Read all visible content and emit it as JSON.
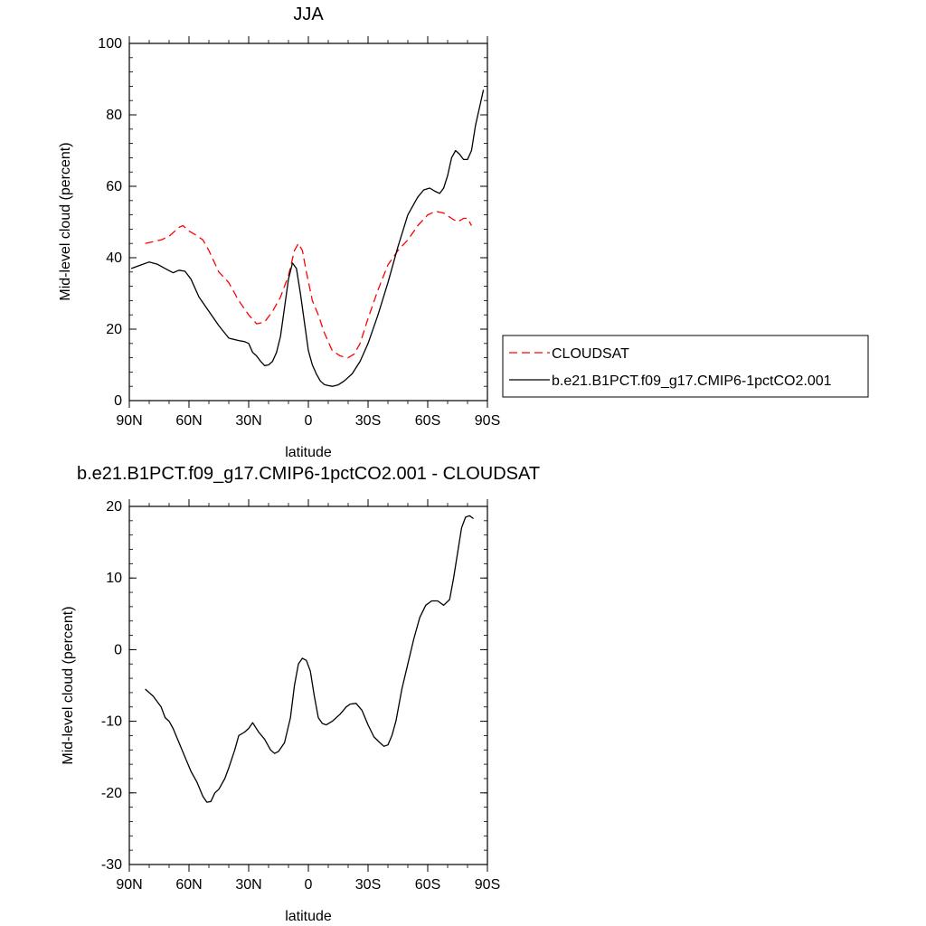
{
  "chart_data": [
    {
      "type": "line",
      "title": "JJA",
      "xlabel": "latitude",
      "ylabel": "Mid-level cloud (percent)",
      "xlim": [
        90,
        -90
      ],
      "ylim": [
        0,
        100
      ],
      "xticks": [
        90,
        60,
        30,
        0,
        -30,
        -60,
        -90
      ],
      "xticklabels": [
        "90N",
        "60N",
        "30N",
        "0",
        "30S",
        "60S",
        "90S"
      ],
      "yticks": [
        0,
        20,
        40,
        60,
        80,
        100
      ],
      "yticklabels": [
        "0",
        "20",
        "40",
        "60",
        "80",
        "100"
      ],
      "legend_position": "right",
      "series": [
        {
          "name": "CLOUDSAT",
          "color": "#ff0000",
          "style": "dashed",
          "x": [
            82,
            74,
            70,
            65,
            63,
            60,
            57,
            53,
            50,
            45,
            40,
            35,
            30,
            26,
            22,
            18,
            14,
            10,
            7,
            5,
            3,
            1,
            -2,
            -5,
            -8,
            -12,
            -16,
            -20,
            -23,
            -26,
            -30,
            -35,
            -40,
            -45,
            -50,
            -55,
            -60,
            -64,
            -68,
            -72,
            -75,
            -78,
            -80,
            -82
          ],
          "y": [
            44,
            45,
            46,
            48.5,
            49,
            47.5,
            46.5,
            45,
            42,
            36,
            33,
            28,
            24,
            21.5,
            22,
            25,
            29,
            35,
            42,
            44,
            42,
            36,
            28,
            24,
            19,
            14,
            12.5,
            12,
            13,
            16,
            23,
            31,
            38,
            42,
            45,
            49,
            52,
            53,
            52.5,
            51,
            50,
            51,
            51,
            49
          ]
        },
        {
          "name": "b.e21.B1PCT.f09_g17.CMIP6-1pctCO2.001",
          "color": "#000000",
          "style": "solid",
          "x": [
            89,
            84,
            80,
            76,
            72,
            68,
            65,
            62,
            59,
            55,
            50,
            45,
            40,
            35,
            32,
            30,
            28,
            26,
            24,
            22,
            20,
            18,
            16,
            14,
            12,
            10,
            8,
            6,
            4,
            2,
            0,
            -2,
            -4,
            -6,
            -8,
            -10,
            -12,
            -15,
            -18,
            -22,
            -26,
            -30,
            -35,
            -40,
            -45,
            -50,
            -55,
            -58,
            -61,
            -64,
            -66,
            -68,
            -70,
            -72,
            -74,
            -76,
            -78,
            -80,
            -82,
            -84,
            -86,
            -88
          ],
          "y": [
            37,
            38,
            38.8,
            38.2,
            37,
            35.8,
            36.5,
            36.2,
            34,
            29,
            25,
            21,
            17.5,
            16.8,
            16.5,
            16,
            13.5,
            12.5,
            11,
            9.8,
            10,
            11,
            13.5,
            18,
            26,
            34,
            38.5,
            37,
            30,
            22,
            14,
            10,
            7.5,
            5.5,
            4.5,
            4.2,
            4,
            4.4,
            5.5,
            7.5,
            11,
            16,
            24,
            33,
            43,
            52,
            57,
            59,
            59.5,
            58.5,
            58,
            59.5,
            63,
            68,
            70,
            69,
            67.5,
            67.5,
            70,
            77,
            82,
            87
          ]
        }
      ]
    },
    {
      "type": "line",
      "title": "b.e21.B1PCT.f09_g17.CMIP6-1pctCO2.001 - CLOUDSAT",
      "xlabel": "latitude",
      "ylabel": "Mid-level cloud (percent)",
      "xlim": [
        90,
        -90
      ],
      "ylim": [
        -30,
        20
      ],
      "xticks": [
        90,
        60,
        30,
        0,
        -30,
        -60,
        -90
      ],
      "xticklabels": [
        "90N",
        "60N",
        "30N",
        "0",
        "30S",
        "60S",
        "90S"
      ],
      "yticks": [
        -30,
        -20,
        -10,
        0,
        10,
        20
      ],
      "yticklabels": [
        "-30",
        "-20",
        "-10",
        "0",
        "10",
        "20"
      ],
      "series": [
        {
          "color": "#000000",
          "style": "solid",
          "x": [
            82,
            78,
            74,
            72,
            70,
            68,
            65,
            62,
            59,
            56,
            53,
            51,
            49,
            47,
            45,
            42,
            40,
            37,
            35,
            32,
            30,
            28,
            25,
            22,
            19,
            17,
            15,
            12,
            9,
            7,
            5,
            3,
            1,
            -1,
            -3,
            -5,
            -7,
            -9,
            -12,
            -16,
            -19,
            -21,
            -24,
            -27,
            -30,
            -33,
            -36,
            -38,
            -40,
            -42,
            -44,
            -47,
            -50,
            -53,
            -56,
            -59,
            -62,
            -65,
            -68,
            -71,
            -73,
            -75,
            -77,
            -79,
            -81,
            -83
          ],
          "y": [
            -5.5,
            -6.5,
            -8,
            -9.5,
            -10,
            -11,
            -13,
            -15,
            -17,
            -18.5,
            -20.5,
            -21.3,
            -21.2,
            -20,
            -19.5,
            -18,
            -16.5,
            -14,
            -12,
            -11.5,
            -11,
            -10.2,
            -11.5,
            -12.5,
            -14,
            -14.5,
            -14.2,
            -13,
            -9.5,
            -5,
            -2,
            -1.2,
            -1.5,
            -3,
            -6.5,
            -9.5,
            -10.3,
            -10.5,
            -10,
            -9,
            -8,
            -7.6,
            -7.5,
            -8.5,
            -10.5,
            -12.2,
            -13,
            -13.5,
            -13.3,
            -12,
            -10,
            -5.5,
            -2,
            1.5,
            4.5,
            6.2,
            6.8,
            6.8,
            6.2,
            7,
            10,
            13.5,
            17,
            18.5,
            18.7,
            18.3
          ]
        }
      ]
    }
  ]
}
